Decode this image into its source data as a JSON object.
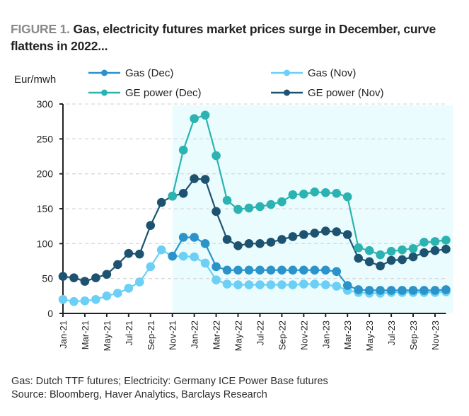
{
  "figure": {
    "label": "FIGURE 1.",
    "title": " Gas, electricity futures market prices surge in December, curve flattens in 2022...",
    "note": "Gas: Dutch TTF futures; Electricity: Germany ICE Power Base futures",
    "source": "Source: Bloomberg, Haver Analytics, Barclays Research"
  },
  "chart_data": {
    "type": "line",
    "title": "Gas, electricity futures market prices surge in December, curve flattens in 2022...",
    "ylabel": "Eur/mwh",
    "xlabel": "",
    "ylim": [
      0,
      300
    ],
    "yticks": [
      0,
      50,
      100,
      150,
      200,
      250,
      300
    ],
    "grid": true,
    "legend_position": "top",
    "x": [
      "Jan-21",
      "Feb-21",
      "Mar-21",
      "Apr-21",
      "May-21",
      "Jun-21",
      "Jul-21",
      "Aug-21",
      "Sep-21",
      "Oct-21",
      "Nov-21",
      "Dec-21",
      "Jan-22",
      "Feb-22",
      "Mar-22",
      "Apr-22",
      "May-22",
      "Jun-22",
      "Jul-22",
      "Aug-22",
      "Sep-22",
      "Oct-22",
      "Nov-22",
      "Dec-22",
      "Jan-23",
      "Feb-23",
      "Mar-23",
      "Apr-23",
      "May-23",
      "Jun-23",
      "Jul-23",
      "Aug-23",
      "Sep-23",
      "Oct-23",
      "Nov-23",
      "Dec-23"
    ],
    "xtick_labels": [
      "Jan-21",
      "Mar-21",
      "May-21",
      "Jul-21",
      "Sep-21",
      "Nov-21",
      "Jan-22",
      "Mar-22",
      "May-22",
      "Jul-22",
      "Sep-22",
      "Nov-22",
      "Jan-23",
      "Mar-23",
      "May-23",
      "Jul-23",
      "Sep-23",
      "Nov-23"
    ],
    "shaded_range": [
      "Nov-21",
      "Dec-23"
    ],
    "series": [
      {
        "name": "Gas (Dec)",
        "color": "#2a93c9",
        "values": [
          null,
          null,
          null,
          null,
          null,
          null,
          null,
          null,
          null,
          null,
          82,
          109,
          109,
          100,
          67,
          62,
          62,
          62,
          62,
          62,
          62,
          62,
          62,
          62,
          62,
          60,
          40,
          34,
          33,
          33,
          33,
          33,
          33,
          33,
          33,
          34
        ]
      },
      {
        "name": "Gas (Nov)",
        "color": "#6ccff5",
        "values": [
          20,
          17,
          18,
          20,
          25,
          29,
          36,
          45,
          67,
          91,
          82,
          82,
          81,
          72,
          48,
          42,
          41,
          41,
          41,
          41,
          41,
          41,
          42,
          42,
          41,
          39,
          33,
          30,
          29,
          29,
          30,
          30,
          30,
          30,
          30,
          31
        ]
      },
      {
        "name": "GE power (Dec)",
        "color": "#2bb3b1",
        "values": [
          null,
          null,
          null,
          null,
          null,
          null,
          null,
          null,
          null,
          null,
          168,
          234,
          279,
          284,
          226,
          162,
          149,
          151,
          153,
          156,
          160,
          170,
          171,
          174,
          173,
          172,
          167,
          94,
          90,
          84,
          89,
          91,
          93,
          102,
          103,
          105
        ]
      },
      {
        "name": "GE power (Nov)",
        "color": "#1d5370",
        "values": [
          53,
          51,
          46,
          51,
          56,
          70,
          86,
          85,
          126,
          159,
          168,
          172,
          193,
          192,
          146,
          106,
          97,
          100,
          100,
          102,
          106,
          110,
          113,
          115,
          118,
          117,
          113,
          79,
          74,
          68,
          76,
          77,
          81,
          87,
          90,
          92
        ]
      }
    ],
    "shade_color": "#eafcfd",
    "axis_color": "#222222",
    "grid_color": "#d9d9d9"
  }
}
